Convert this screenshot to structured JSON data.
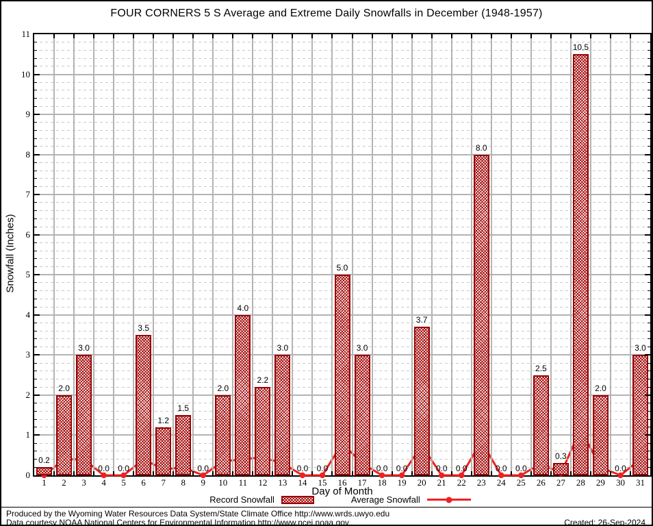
{
  "title": "FOUR CORNERS 5 S Average and Extreme Daily Snowfalls in December (1948-1957)",
  "axes": {
    "y_label": "Snowfall (Inches)",
    "x_label": "Day of Month",
    "y_ticks": [
      "0",
      "1",
      "2",
      "3",
      "4",
      "5",
      "6",
      "7",
      "8",
      "9",
      "10",
      "11"
    ],
    "y_min": 0,
    "y_max": 11,
    "y_minor_step": 0.2
  },
  "legend": [
    {
      "label": "Record Snowfall",
      "swatch": "hatched-bar-swatch"
    },
    {
      "label": "Average Snowfall",
      "swatch": "red-line-marker-swatch"
    }
  ],
  "footer": {
    "line1": "Produced by the Wyoming Water Resources Data System/State Climate Office http://www.wrds.uwyo.edu",
    "line2": "Data courtesy NOAA National Centers for Environmental Information http://www.ncei.noaa.gov",
    "created": "Created: 26-Sep-2024"
  },
  "colors": {
    "bar_border": "#990000",
    "bar_hatch": "#a00000",
    "line": "#ee2222",
    "grid_major": "#b3b3b3",
    "grid_minor": "#c9c9c9"
  },
  "chart_data": {
    "type": "bar",
    "title": "FOUR CORNERS 5 S Average and Extreme Daily Snowfalls in December (1948-1957)",
    "xlabel": "Day of Month",
    "ylabel": "Snowfall (Inches)",
    "ylim": [
      0,
      11
    ],
    "grid": true,
    "legend_position": "bottom",
    "categories": [
      1,
      2,
      3,
      4,
      5,
      6,
      7,
      8,
      9,
      10,
      11,
      12,
      13,
      14,
      15,
      16,
      17,
      18,
      19,
      20,
      21,
      22,
      23,
      24,
      25,
      26,
      27,
      28,
      29,
      30,
      31
    ],
    "series": [
      {
        "name": "Record Snowfall",
        "type": "bar",
        "values": [
          0.2,
          2.0,
          3.0,
          0.0,
          0.0,
          3.5,
          1.2,
          1.5,
          0.0,
          2.0,
          4.0,
          2.2,
          3.0,
          0.0,
          0.0,
          5.0,
          3.0,
          0.0,
          0.0,
          3.7,
          0.0,
          0.0,
          8.0,
          0.0,
          0.0,
          2.5,
          0.3,
          10.5,
          2.0,
          0.0,
          3.0
        ]
      },
      {
        "name": "Average Snowfall",
        "type": "line",
        "values": [
          0.0,
          0.4,
          0.4,
          0.0,
          0.0,
          0.4,
          0.15,
          0.2,
          0.0,
          0.35,
          0.4,
          0.45,
          0.3,
          0.0,
          0.0,
          0.8,
          0.3,
          0.0,
          0.0,
          0.75,
          0.0,
          0.0,
          0.85,
          0.0,
          0.0,
          0.3,
          0.05,
          1.15,
          0.2,
          0.0,
          0.4
        ]
      }
    ],
    "bar_labels": [
      "0.2",
      "2.0",
      "3.0",
      "0.0",
      "0.0",
      "3.5",
      "1.2",
      "1.5",
      "0.0",
      "2.0",
      "4.0",
      "2.2",
      "3.0",
      "0.0",
      "0.0",
      "5.0",
      "3.0",
      "0.0",
      "0.0",
      "3.7",
      "0.0",
      "0.0",
      "8.0",
      "0.0",
      "0.0",
      "2.5",
      "0.3",
      "10.5",
      "2.0",
      "0.0",
      "3.0"
    ]
  }
}
